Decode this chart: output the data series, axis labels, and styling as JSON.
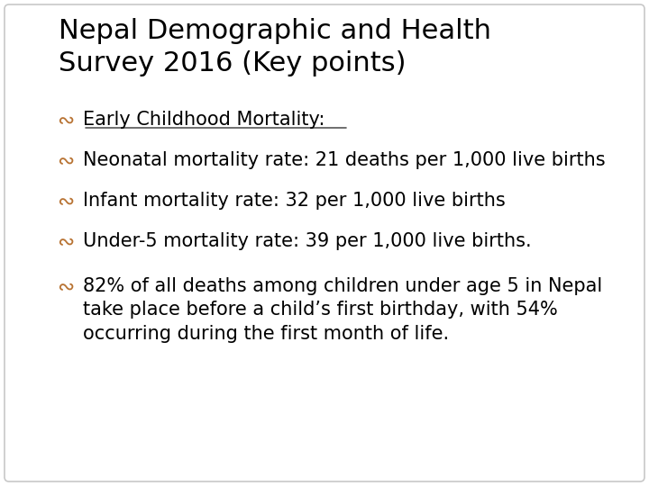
{
  "title_line1": "Nepal Demographic and Health",
  "title_line2": "Survey 2016 (Key points)",
  "title_fontsize": 22,
  "title_color": "#000000",
  "background_color": "#ffffff",
  "border_color": "#c8c8c8",
  "bullet_color": "#b87333",
  "text_color": "#000000",
  "bullet1_text": "Early Childhood Mortality:",
  "bullet2_text": "Neonatal mortality rate: 21 deaths per 1,000 live births",
  "bullet3_text": "Infant mortality rate: 32 per 1,000 live births",
  "bullet4_text": "Under-5 mortality rate: 39 per 1,000 live births.",
  "bullet5_line1": "82% of all deaths among children under age 5 in Nepal",
  "bullet5_line2": "take place before a child’s first birthday, with 54%",
  "bullet5_line3": "occurring during the first month of life.",
  "body_fontsize": 15,
  "figwidth": 7.2,
  "figheight": 5.4,
  "dpi": 100
}
